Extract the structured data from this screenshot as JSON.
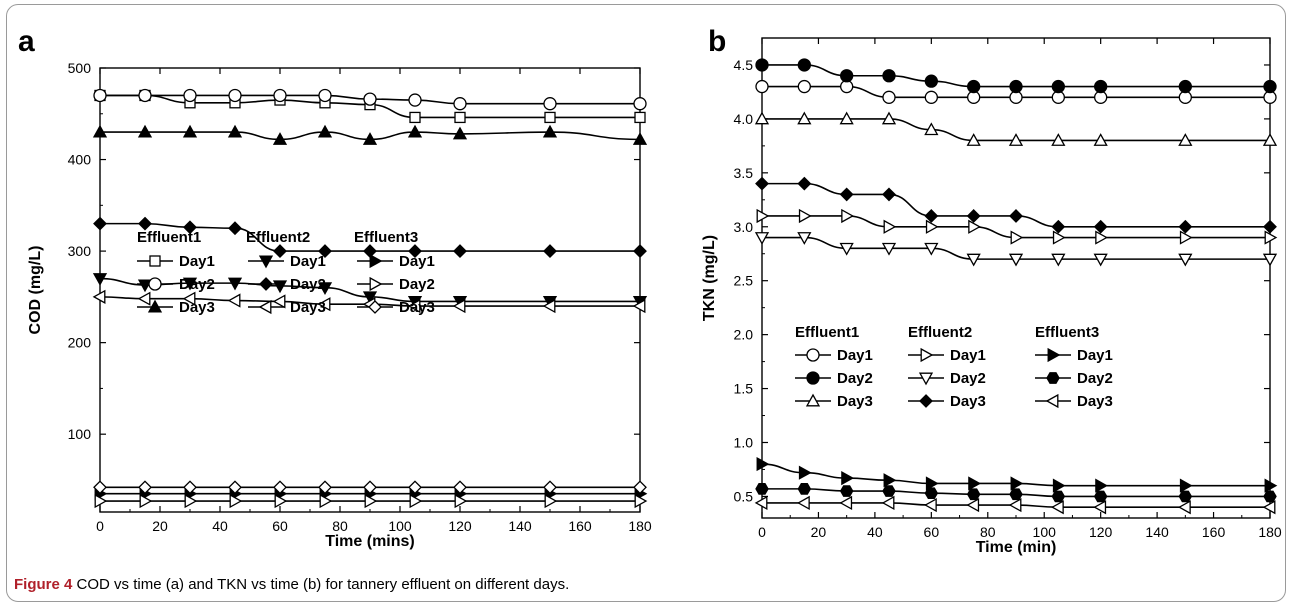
{
  "caption": {
    "label": "Figure 4",
    "text": " COD vs time (a) and TKN vs time (b) for tannery effluent on different days."
  },
  "chart_data": [
    {
      "panel": "a",
      "type": "line",
      "xlabel": "Time (mins)",
      "ylabel": "COD (mg/L)",
      "xlim": [
        0,
        180
      ],
      "ylim": [
        15,
        500
      ],
      "xticks": [
        0,
        20,
        40,
        60,
        80,
        100,
        120,
        140,
        160,
        180
      ],
      "yticks": [
        100,
        200,
        300,
        400,
        500
      ],
      "grid": false,
      "legend_groups": [
        "Effluent1",
        "Effluent2",
        "Effluent3"
      ],
      "series": [
        {
          "name": "Day1",
          "group": "Effluent1",
          "marker": "square-open",
          "x": [
            0,
            15,
            30,
            45,
            60,
            75,
            90,
            105,
            120,
            150,
            180
          ],
          "y": [
            470,
            470,
            462,
            462,
            465,
            462,
            460,
            446,
            446,
            446,
            446
          ]
        },
        {
          "name": "Day2",
          "group": "Effluent1",
          "marker": "circle-open",
          "x": [
            0,
            15,
            30,
            45,
            60,
            75,
            90,
            105,
            120,
            150,
            180
          ],
          "y": [
            470,
            470,
            470,
            470,
            470,
            470,
            466,
            465,
            461,
            461,
            461
          ]
        },
        {
          "name": "Day3",
          "group": "Effluent1",
          "marker": "triangle-up-filled",
          "x": [
            0,
            15,
            30,
            45,
            60,
            75,
            90,
            105,
            120,
            150,
            180
          ],
          "y": [
            430,
            430,
            430,
            430,
            422,
            430,
            422,
            430,
            428,
            430,
            422
          ]
        },
        {
          "name": "Day1",
          "group": "Effluent2",
          "marker": "triangle-down-filled",
          "x": [
            0,
            15,
            30,
            45,
            60,
            75,
            90,
            105,
            120,
            150,
            180
          ],
          "y": [
            270,
            263,
            265,
            265,
            262,
            260,
            250,
            245,
            245,
            245,
            245
          ]
        },
        {
          "name": "Day2",
          "group": "Effluent2",
          "marker": "diamond-filled",
          "x": [
            0,
            15,
            30,
            45,
            60,
            75,
            90,
            105,
            120,
            150,
            180
          ],
          "y": [
            330,
            330,
            326,
            325,
            300,
            300,
            300,
            300,
            300,
            300,
            300
          ]
        },
        {
          "name": "Day3",
          "group": "Effluent2",
          "marker": "triangle-left-open",
          "x": [
            0,
            15,
            30,
            45,
            60,
            75,
            90,
            105,
            120,
            150,
            180
          ],
          "y": [
            250,
            248,
            248,
            246,
            245,
            242,
            242,
            240,
            240,
            240,
            240
          ]
        },
        {
          "name": "Day1",
          "group": "Effluent3",
          "marker": "triangle-right-filled",
          "x": [
            0,
            15,
            30,
            45,
            60,
            75,
            90,
            105,
            120,
            150,
            180
          ],
          "y": [
            35,
            35,
            35,
            35,
            35,
            35,
            35,
            35,
            35,
            35,
            35
          ]
        },
        {
          "name": "Day2",
          "group": "Effluent3",
          "marker": "triangle-right-open",
          "x": [
            0,
            15,
            30,
            45,
            60,
            75,
            90,
            105,
            120,
            150,
            180
          ],
          "y": [
            27,
            27,
            27,
            27,
            27,
            27,
            27,
            27,
            27,
            27,
            27
          ]
        },
        {
          "name": "Day3",
          "group": "Effluent3",
          "marker": "diamond-open",
          "x": [
            0,
            15,
            30,
            45,
            60,
            75,
            90,
            105,
            120,
            150,
            180
          ],
          "y": [
            42,
            42,
            42,
            42,
            42,
            42,
            42,
            42,
            42,
            42,
            42
          ]
        }
      ]
    },
    {
      "panel": "b",
      "type": "line",
      "xlabel": "Time (min)",
      "ylabel": "TKN (mg/L)",
      "xlim": [
        0,
        180
      ],
      "ylim": [
        0.3,
        4.75
      ],
      "xticks": [
        0,
        20,
        40,
        60,
        80,
        100,
        120,
        140,
        160,
        180
      ],
      "yticks": [
        0.5,
        1.0,
        1.5,
        2.0,
        2.5,
        3.0,
        3.5,
        4.0,
        4.5
      ],
      "grid": false,
      "legend_groups": [
        "Effluent1",
        "Effluent2",
        "Effluent3"
      ],
      "series": [
        {
          "name": "Day1",
          "group": "Effluent1",
          "marker": "circle-open",
          "x": [
            0,
            15,
            30,
            45,
            60,
            75,
            90,
            105,
            120,
            150,
            180
          ],
          "y": [
            4.3,
            4.3,
            4.3,
            4.2,
            4.2,
            4.2,
            4.2,
            4.2,
            4.2,
            4.2,
            4.2
          ]
        },
        {
          "name": "Day2",
          "group": "Effluent1",
          "marker": "circle-filled",
          "x": [
            0,
            15,
            30,
            45,
            60,
            75,
            90,
            105,
            120,
            150,
            180
          ],
          "y": [
            4.5,
            4.5,
            4.4,
            4.4,
            4.35,
            4.3,
            4.3,
            4.3,
            4.3,
            4.3,
            4.3
          ]
        },
        {
          "name": "Day3",
          "group": "Effluent1",
          "marker": "triangle-up-open",
          "x": [
            0,
            15,
            30,
            45,
            60,
            75,
            90,
            105,
            120,
            150,
            180
          ],
          "y": [
            4.0,
            4.0,
            4.0,
            4.0,
            3.9,
            3.8,
            3.8,
            3.8,
            3.8,
            3.8,
            3.8
          ]
        },
        {
          "name": "Day1",
          "group": "Effluent2",
          "marker": "triangle-right-open",
          "x": [
            0,
            15,
            30,
            45,
            60,
            75,
            90,
            105,
            120,
            150,
            180
          ],
          "y": [
            3.1,
            3.1,
            3.1,
            3.0,
            3.0,
            3.0,
            2.9,
            2.9,
            2.9,
            2.9,
            2.9
          ]
        },
        {
          "name": "Day2",
          "group": "Effluent2",
          "marker": "triangle-down-open",
          "x": [
            0,
            15,
            30,
            45,
            60,
            75,
            90,
            105,
            120,
            150,
            180
          ],
          "y": [
            2.9,
            2.9,
            2.8,
            2.8,
            2.8,
            2.7,
            2.7,
            2.7,
            2.7,
            2.7,
            2.7
          ]
        },
        {
          "name": "Day3",
          "group": "Effluent2",
          "marker": "diamond-filled",
          "x": [
            0,
            15,
            30,
            45,
            60,
            75,
            90,
            105,
            120,
            150,
            180
          ],
          "y": [
            3.4,
            3.4,
            3.3,
            3.3,
            3.1,
            3.1,
            3.1,
            3.0,
            3.0,
            3.0,
            3.0
          ]
        },
        {
          "name": "Day1",
          "group": "Effluent3",
          "marker": "triangle-right-filled",
          "x": [
            0,
            15,
            30,
            45,
            60,
            75,
            90,
            105,
            120,
            150,
            180
          ],
          "y": [
            0.8,
            0.72,
            0.67,
            0.65,
            0.62,
            0.62,
            0.62,
            0.6,
            0.6,
            0.6,
            0.6
          ]
        },
        {
          "name": "Day2",
          "group": "Effluent3",
          "marker": "hexagon-filled",
          "x": [
            0,
            15,
            30,
            45,
            60,
            75,
            90,
            105,
            120,
            150,
            180
          ],
          "y": [
            0.57,
            0.57,
            0.55,
            0.55,
            0.53,
            0.52,
            0.52,
            0.5,
            0.5,
            0.5,
            0.5
          ]
        },
        {
          "name": "Day3",
          "group": "Effluent3",
          "marker": "triangle-left-open",
          "x": [
            0,
            15,
            30,
            45,
            60,
            75,
            90,
            105,
            120,
            150,
            180
          ],
          "y": [
            0.44,
            0.44,
            0.44,
            0.44,
            0.42,
            0.42,
            0.42,
            0.4,
            0.4,
            0.4,
            0.4
          ]
        }
      ]
    }
  ]
}
